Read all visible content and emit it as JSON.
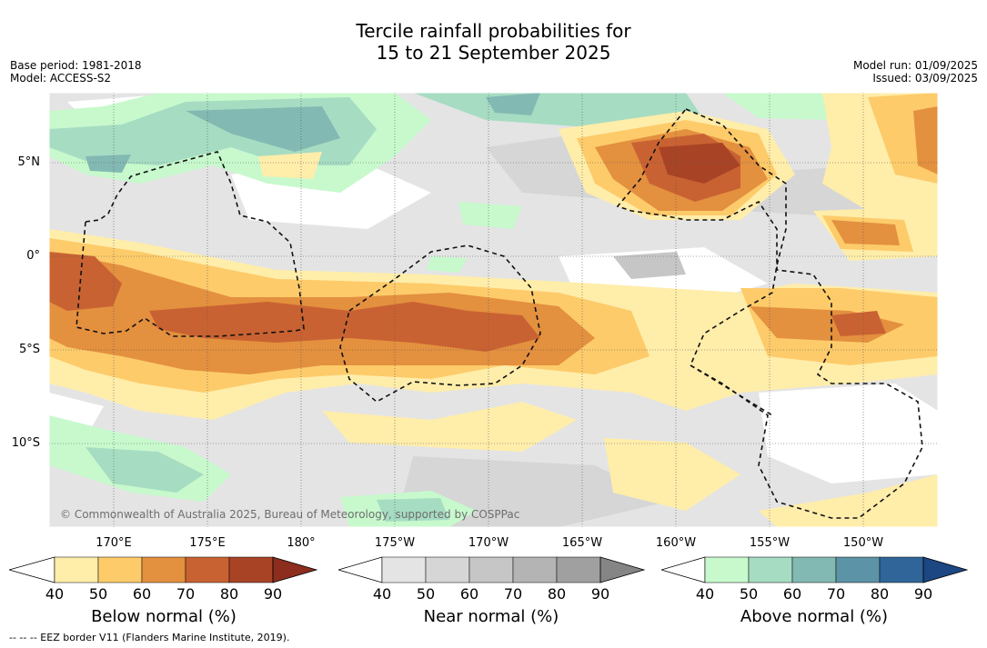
{
  "title": {
    "line1": "Tercile rainfall probabilities for",
    "line2": "15 to 21 September 2025"
  },
  "meta": {
    "base_period": "Base period: 1981-2018",
    "model": "Model: ACCESS-S2",
    "model_run": "Model run: 01/09/2025",
    "issued": "Issued: 03/09/2025"
  },
  "map": {
    "lat_labels": [
      "5°N",
      "0°",
      "5°S",
      "10°S"
    ],
    "lon_labels": [
      "170°E",
      "175°E",
      "180°",
      "175°W",
      "170°W",
      "165°W",
      "160°W",
      "155°W",
      "150°W"
    ],
    "copyright": "© Commonwealth of Australia 2025, Bureau of Meteorology, supported by COSPPac"
  },
  "colorbars": [
    {
      "title": "Below normal (%)",
      "ticks": [
        "40",
        "50",
        "60",
        "70",
        "80",
        "90"
      ],
      "colors": [
        "#ffedaa",
        "#fdcb6a",
        "#e3903f",
        "#c96232",
        "#a84326",
        "#8c2d1d"
      ]
    },
    {
      "title": "Near normal (%)",
      "ticks": [
        "40",
        "50",
        "60",
        "70",
        "80",
        "90"
      ],
      "colors": [
        "#e4e4e4",
        "#d6d6d6",
        "#c6c6c6",
        "#b4b4b4",
        "#a0a0a0",
        "#858585"
      ]
    },
    {
      "title": "Above normal (%)",
      "ticks": [
        "40",
        "50",
        "60",
        "70",
        "80",
        "90"
      ],
      "colors": [
        "#c7f9cd",
        "#a6dcc2",
        "#83b9b3",
        "#5c93a6",
        "#2f6598",
        "#1c4782"
      ]
    }
  ],
  "footer": "-- -- -- EEZ border V11 (Flanders Marine Institute, 2019)."
}
